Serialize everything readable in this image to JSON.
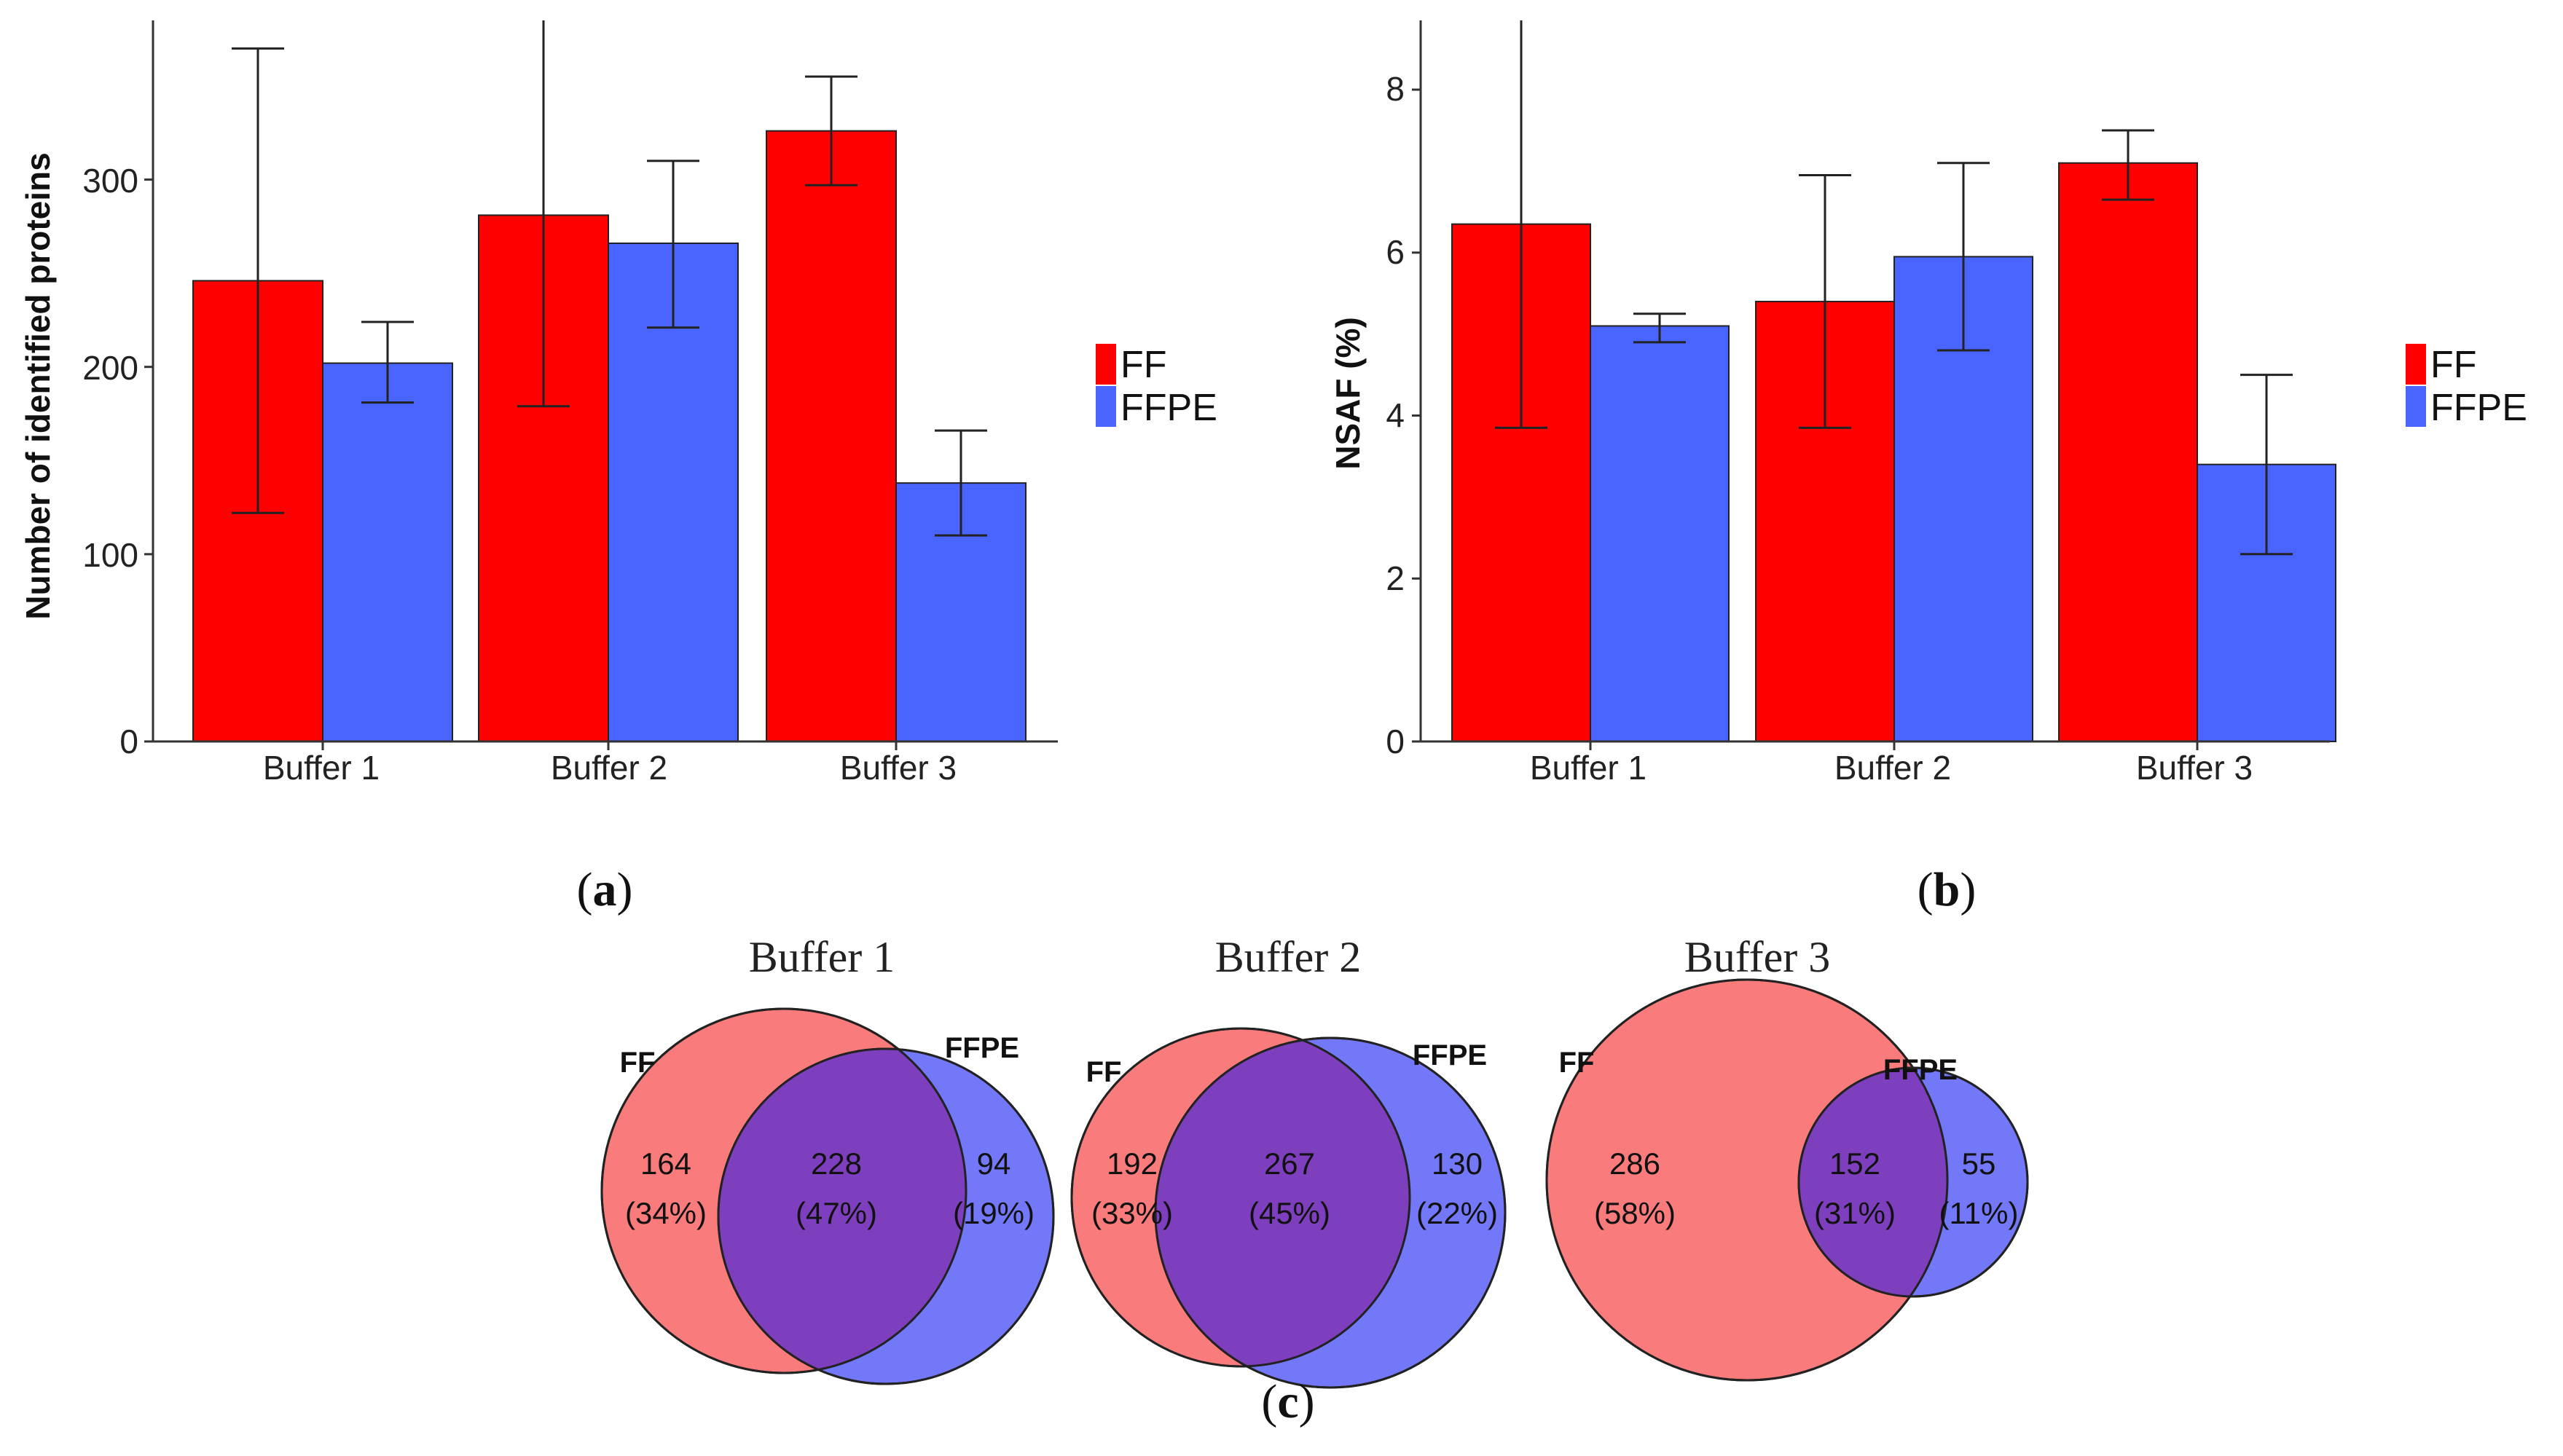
{
  "colors": {
    "ff": "#ff0000",
    "ffpe": "#4a64ff",
    "venn_ff": "#f97b7b",
    "venn_ffpe": "#7278f7",
    "venn_overlap": "#7e3fbf"
  },
  "chart_data": [
    {
      "panel": "a",
      "type": "bar",
      "title": "",
      "xlabel": "",
      "ylabel": "Number of identified proteins",
      "categories": [
        "Buffer 1",
        "Buffer 2",
        "Buffer 3"
      ],
      "ylim": [
        0,
        385
      ],
      "yticks": [
        "0",
        "100",
        "200",
        "300"
      ],
      "series": [
        {
          "name": "FF",
          "values": [
            246,
            281,
            326
          ],
          "error_low": [
            122,
            179,
            297
          ],
          "error_high": [
            370,
            392,
            355
          ]
        },
        {
          "name": "FFPE",
          "values": [
            202,
            266,
            138
          ],
          "error_low": [
            181,
            221,
            110
          ],
          "error_high": [
            224,
            310,
            166
          ]
        }
      ],
      "legend": [
        "FF",
        "FFPE"
      ],
      "legend_position": "right",
      "label_prefix": "(",
      "label_letter": "a",
      "label_suffix": ")"
    },
    {
      "panel": "b",
      "type": "bar",
      "title": "",
      "xlabel": "",
      "ylabel": "NSAF (%)",
      "categories": [
        "Buffer 1",
        "Buffer 2",
        "Buffer 3"
      ],
      "ylim": [
        0,
        8.85
      ],
      "yticks": [
        "0",
        "2",
        "4",
        "6",
        "8"
      ],
      "series": [
        {
          "name": "FF",
          "values": [
            6.35,
            5.4,
            7.1
          ],
          "error_low": [
            3.85,
            3.85,
            6.65
          ],
          "error_high": [
            9.0,
            6.95,
            7.5
          ]
        },
        {
          "name": "FFPE",
          "values": [
            5.1,
            5.95,
            3.4
          ],
          "error_low": [
            4.9,
            4.8,
            2.3
          ],
          "error_high": [
            5.25,
            7.1,
            4.5
          ]
        }
      ],
      "legend": [
        "FF",
        "FFPE"
      ],
      "legend_position": "right",
      "label_prefix": "(",
      "label_letter": "b",
      "label_suffix": ")"
    },
    {
      "panel": "c",
      "type": "venn",
      "sets": [
        "FF",
        "FFPE"
      ],
      "diagrams": [
        {
          "title": "Buffer 1",
          "ff_only": "164",
          "ff_only_pct": "(34%)",
          "both": "228",
          "both_pct": "(47%)",
          "ffpe_only": "94",
          "ffpe_only_pct": "(19%)"
        },
        {
          "title": "Buffer 2",
          "ff_only": "192",
          "ff_only_pct": "(33%)",
          "both": "267",
          "both_pct": "(45%)",
          "ffpe_only": "130",
          "ffpe_only_pct": "(22%)"
        },
        {
          "title": "Buffer 3",
          "ff_only": "286",
          "ff_only_pct": "(58%)",
          "both": "152",
          "both_pct": "(31%)",
          "ffpe_only": "55",
          "ffpe_only_pct": "(11%)"
        }
      ],
      "label_prefix": "(",
      "label_letter": "c",
      "label_suffix": ")"
    }
  ]
}
